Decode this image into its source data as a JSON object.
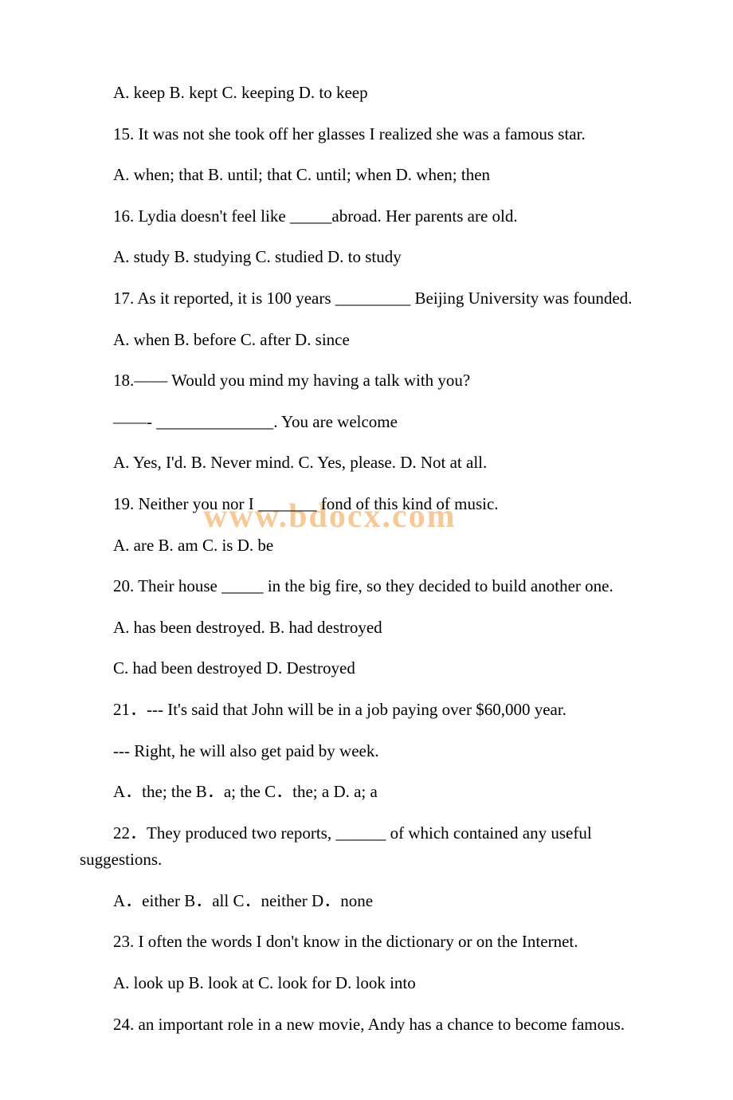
{
  "watermark": "www.bdocx.com",
  "lines": [
    "A. keep B. kept C. keeping D. to keep",
    "15. It was not she took off her glasses I realized she was a famous star.",
    "A. when; that B. until; that C. until; when D. when; then",
    "16. Lydia doesn't feel like _____abroad. Her parents are old.",
    "A. study B. studying C. studied D. to study",
    "17. As it reported, it is 100 years _________ Beijing University was founded.",
    "A. when B. before C. after D. since",
    "18.—— Would you mind my having a talk with you?",
    "——- ______________. You are welcome",
    "A. Yes, I'd. B. Never mind. C. Yes, please. D. Not at all.",
    "19. Neither you nor I _______ fond of this kind of music.",
    "A. are B. am C. is D. be",
    "20. Their house _____ in the big fire, so they decided to build another one.",
    "A. has been destroyed. B. had destroyed",
    "C. had been destroyed D. Destroyed",
    "21．--- It's said that John will be in a job paying over $60,000  year.",
    " --- Right, he will also get paid by  week.",
    "A．the; the B．a; the C．the; a  D. a; a",
    "22．They produced two reports, ______ of which contained any useful suggestions.",
    "A．either B．all C．neither D．none",
    "23. I often the words I don't know in the dictionary or on the Internet.",
    "A. look up B. look at C. look for D. look into",
    "24.  an important role in a new movie, Andy has a chance to become famous."
  ],
  "lineStyles": [
    "indent",
    "hanging",
    "indent",
    "indent",
    "indent",
    "hanging",
    "indent",
    "indent",
    "indent",
    "indent",
    "indent",
    "indent",
    "hanging",
    "indent",
    "indent",
    "indent",
    "indent",
    "indent",
    "hanging",
    "indent",
    "indent",
    "indent",
    "hanging"
  ],
  "colors": {
    "background": "#ffffff",
    "text": "#000000",
    "watermark": "#f5c998"
  },
  "typography": {
    "bodyFontSize": 21,
    "fontFamily": "Times New Roman",
    "lineHeight": 1.6,
    "paragraphSpacing": 18,
    "textIndent": 42
  }
}
